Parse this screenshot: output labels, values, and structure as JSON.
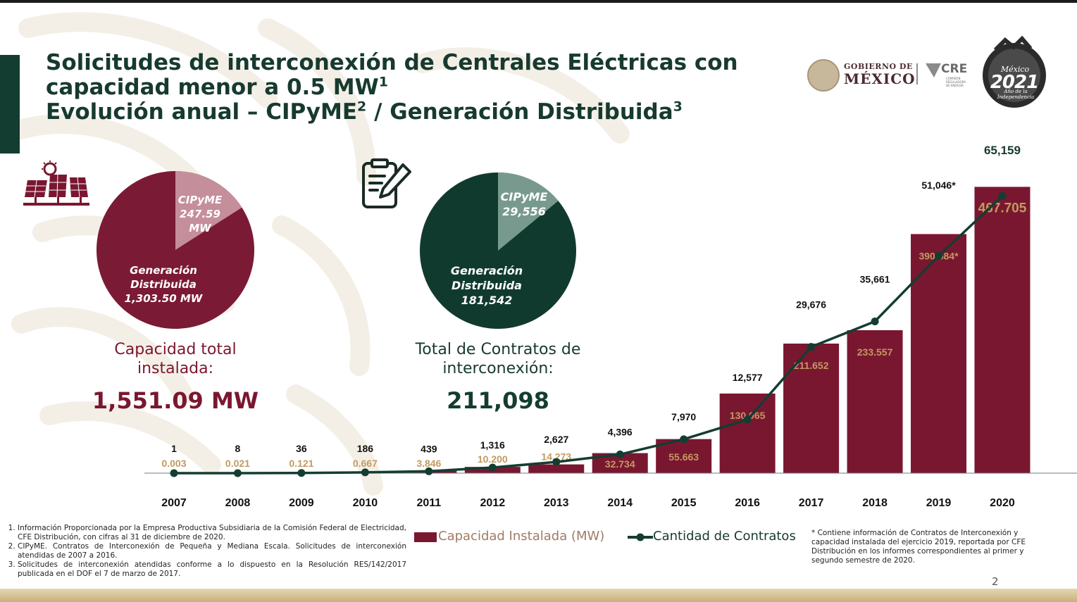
{
  "title": {
    "line1": "Solicitudes de interconexión de Centrales Eléctricas con",
    "line2": "capacidad menor a 0.5 MW",
    "line2_sup": "1",
    "line3a": "Evolución anual – CIPyME",
    "line3a_sup": "2",
    "line3b": " / Generación Distribuida",
    "line3b_sup": "3"
  },
  "logos": {
    "gobierno_small": "GOBIERNO DE",
    "gobierno_large": "MÉXICO",
    "cre": "CRE",
    "cre_sub": "COMISIÓN REGULADORA DE ENERGÍA",
    "badge_line1": "México",
    "badge_line2": "2021",
    "badge_line3": "Año de la Independencia"
  },
  "capacity_panel": {
    "icon": "solar-panel-icon",
    "pie_small": {
      "name": "CIPyME",
      "value": "247.59",
      "unit": "MW",
      "share": 0.1596
    },
    "pie_large": {
      "name1": "Generación",
      "name2": "Distribuida",
      "value": "1,303.50 MW"
    },
    "label": "Capacidad total instalada:",
    "total": "1,551.09 MW"
  },
  "contracts_panel": {
    "icon": "contract-document-icon",
    "pie_small": {
      "name": "CIPyME",
      "value": "29,556",
      "share": 0.14
    },
    "pie_large": {
      "name1": "Generación",
      "name2": "Distribuida",
      "value": "181,542"
    },
    "label": "Total de Contratos de interconexión:",
    "total": "211,098"
  },
  "colors": {
    "bar": "#7a1730",
    "bar_label": "#c29a62",
    "line": "#143d31",
    "title": "#173a2f",
    "pie_capacity_dark": "#7b1a35",
    "pie_capacity_light": "#c48e9b",
    "pie_contracts_dark": "#113a2f",
    "pie_contracts_light": "#789a8e"
  },
  "chart_data": {
    "type": "bar",
    "categories": [
      "2007",
      "2008",
      "2009",
      "2010",
      "2011",
      "2012",
      "2013",
      "2014",
      "2015",
      "2016",
      "2017",
      "2018",
      "2019",
      "2020"
    ],
    "series": [
      {
        "name": "Capacidad Instalada (MW)",
        "type": "bar",
        "values": [
          0.003,
          0.021,
          0.121,
          0.667,
          3.846,
          10.2,
          14.273,
          32.734,
          55.663,
          130.065,
          211.652,
          233.557,
          390.584,
          467.705
        ],
        "labels": [
          "0.003",
          "0.021",
          "0.121",
          "0.667",
          "3.846",
          "10.200",
          "14.273",
          "32.734",
          "55.663",
          "130.065",
          "211.652",
          "233.557",
          "390.584*",
          "467.705"
        ]
      },
      {
        "name": "Cantidad de Contratos",
        "type": "line",
        "values": [
          1,
          8,
          36,
          186,
          439,
          1316,
          2627,
          4396,
          7970,
          12577,
          29676,
          35661,
          51046,
          65159
        ],
        "labels": [
          "1",
          "8",
          "36",
          "186",
          "439",
          "1,316",
          "2,627",
          "4,396",
          "7,970",
          "12,577",
          "29,676",
          "35,661",
          "51,046*",
          "65,159"
        ]
      }
    ],
    "ylim_bar": [
      0,
      490
    ],
    "ylim_line": [
      0,
      70500
    ],
    "legend": "bottom",
    "grid": false
  },
  "legend": {
    "bar_label": "Capacidad Instalada (MW)",
    "line_label": "Cantidad de Contratos"
  },
  "footnotes": [
    "Información Proporcionada por la Empresa Productiva Subsidiaria de la Comisión Federal de Electricidad, CFE Distribución, con cifras al 31 de diciembre de 2020.",
    "CIPyME. Contratos de Interconexión de Pequeña y Mediana Escala. Solicitudes de interconexión atendidas de 2007 a 2016.",
    "Solicitudes de interconexión atendidas conforme a lo dispuesto en la Resolución RES/142/2017 publicada en el DOF el 7 de marzo de 2017."
  ],
  "asterisk_note": "* Contiene información de Contratos de Interconexión y capacidad instalada del ejercicio 2019, reportada por CFE Distribución en los informes correspondientes al primer y segundo semestre de 2020.",
  "page_number": "2"
}
